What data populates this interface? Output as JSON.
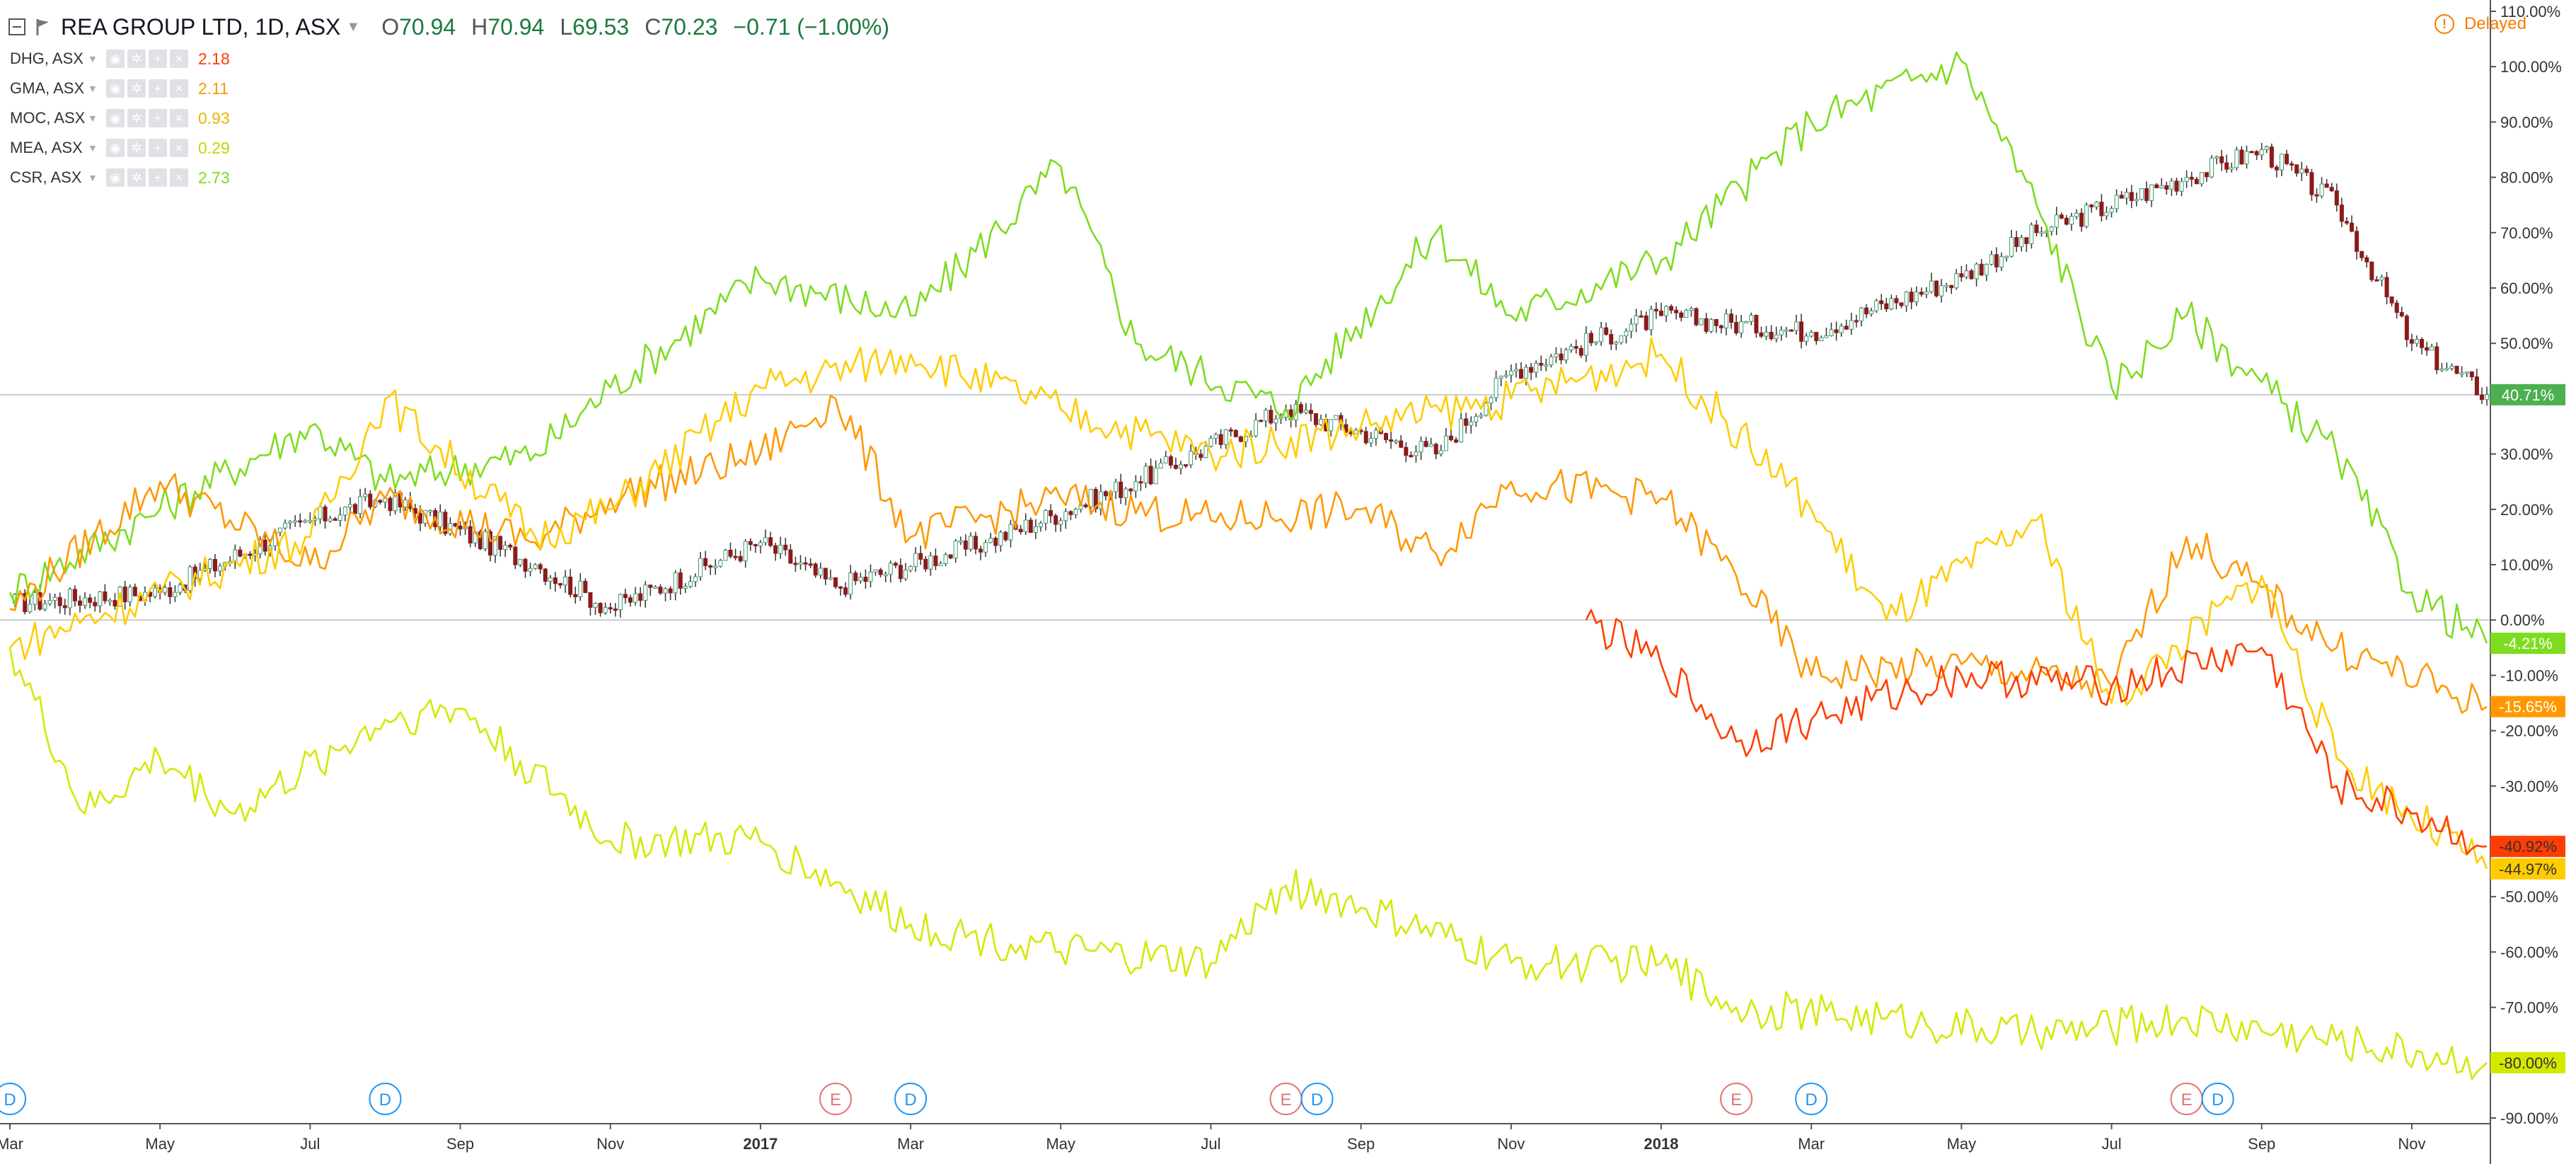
{
  "header": {
    "symbol": "REA GROUP LTD, 1D, ASX",
    "open_label": "O",
    "open": "70.94",
    "high_label": "H",
    "high": "70.94",
    "low_label": "L",
    "low": "69.53",
    "close_label": "C",
    "close": "70.23",
    "change": "−0.71 (−1.00%)"
  },
  "status": {
    "delayed": "Delayed"
  },
  "comparisons": [
    {
      "symbol": "DHG, ASX",
      "value": "2.18",
      "color": "#ff3d00"
    },
    {
      "symbol": "GMA, ASX",
      "value": "2.11",
      "color": "#ff9800"
    },
    {
      "symbol": "MOC, ASX",
      "value": "0.93",
      "color": "#ffcc00"
    },
    {
      "symbol": "MEA, ASX",
      "value": "0.29",
      "color": "#d4e800"
    },
    {
      "symbol": "CSR, ASX",
      "value": "2.73",
      "color": "#7ddc1f"
    }
  ],
  "icons": [
    "collapse-icon",
    "flag-icon",
    "eye-icon",
    "gear-icon",
    "plus-icon",
    "close-icon",
    "info-icon"
  ],
  "chart_data": {
    "type": "line",
    "percent_scale": true,
    "ylim": [
      -90,
      110
    ],
    "y_ticks": [
      "110.00%",
      "100.00%",
      "90.00%",
      "80.00%",
      "70.00%",
      "60.00%",
      "50.00%",
      "40.00%",
      "30.00%",
      "20.00%",
      "10.00%",
      "0.00%",
      "-10.00%",
      "-20.00%",
      "-30.00%",
      "-40.00%",
      "-50.00%",
      "-60.00%",
      "-70.00%",
      "-80.00%",
      "-90.00%"
    ],
    "x_ticks": [
      "Mar",
      "May",
      "Jul",
      "Sep",
      "Nov",
      "2017",
      "Mar",
      "May",
      "Jul",
      "Sep",
      "Nov",
      "2018",
      "Mar",
      "May",
      "Jul",
      "Sep",
      "Nov"
    ],
    "x_range": [
      "2016-03",
      "2018-12"
    ],
    "series": [
      {
        "name": "REA, ASX",
        "style": "candlestick",
        "color_up": "#3d9970",
        "color_down": "#8b1a1a",
        "last_label": "40.71%",
        "x": [
          "2016-03",
          "2016-05",
          "2016-07",
          "2016-08",
          "2016-10",
          "2016-11",
          "2017-01",
          "2017-02",
          "2017-04",
          "2017-06",
          "2017-08",
          "2017-10",
          "2017-11",
          "2018-01",
          "2018-03",
          "2018-05",
          "2018-06",
          "2018-08",
          "2018-09",
          "2018-10",
          "2018-11",
          "2018-12"
        ],
        "y": [
          3,
          5,
          18,
          22,
          10,
          2,
          14,
          6,
          14,
          25,
          38,
          30,
          45,
          55,
          52,
          62,
          70,
          80,
          85,
          75,
          50,
          40.71
        ]
      },
      {
        "name": "CSR, ASX",
        "color": "#7ddc1f",
        "last_label": "-4.21%",
        "x": [
          "2016-03",
          "2016-05",
          "2016-07",
          "2016-08",
          "2016-10",
          "2016-11",
          "2017-01",
          "2017-03",
          "2017-05",
          "2017-06",
          "2017-08",
          "2017-10",
          "2017-11",
          "2018-01",
          "2018-03",
          "2018-05",
          "2018-06",
          "2018-07",
          "2018-08",
          "2018-10",
          "2018-11",
          "2018-12"
        ],
        "y": [
          5,
          20,
          35,
          25,
          30,
          42,
          62,
          55,
          82,
          50,
          38,
          70,
          55,
          65,
          90,
          101,
          75,
          42,
          55,
          30,
          5,
          -4.21
        ]
      },
      {
        "name": "GMA, ASX",
        "color": "#ff9800",
        "last_label": "-15.65%",
        "x": [
          "2016-03",
          "2016-05",
          "2016-07",
          "2016-08",
          "2016-10",
          "2016-11",
          "2017-01",
          "2017-02",
          "2017-03",
          "2017-05",
          "2017-07",
          "2017-09",
          "2017-10",
          "2017-11",
          "2018-01",
          "2018-02",
          "2018-03",
          "2018-05",
          "2018-07",
          "2018-08",
          "2018-10",
          "2018-12"
        ],
        "y": [
          2,
          25,
          10,
          22,
          14,
          22,
          30,
          40,
          15,
          22,
          18,
          20,
          12,
          25,
          22,
          8,
          -10,
          -8,
          -12,
          15,
          -5,
          -15.65
        ]
      },
      {
        "name": "MOC, ASX",
        "color": "#ffcc00",
        "last_label": "-44.97%",
        "x": [
          "2016-03",
          "2016-05",
          "2016-07",
          "2016-08",
          "2016-10",
          "2016-11",
          "2017-01",
          "2017-03",
          "2017-05",
          "2017-07",
          "2017-09",
          "2017-11",
          "2018-01",
          "2018-03",
          "2018-04",
          "2018-06",
          "2018-07",
          "2018-09",
          "2018-10",
          "2018-12"
        ],
        "y": [
          -5,
          5,
          15,
          40,
          15,
          20,
          42,
          48,
          38,
          30,
          35,
          40,
          48,
          20,
          0,
          18,
          -15,
          8,
          -25,
          -44.97
        ]
      },
      {
        "name": "DHG, ASX",
        "color": "#ff3d00",
        "last_label": "-40.92%",
        "x": [
          "2017-12",
          "2018-01",
          "2018-02",
          "2018-03",
          "2018-05",
          "2018-07",
          "2018-09",
          "2018-10",
          "2018-11",
          "2018-12"
        ],
        "y": [
          0,
          -8,
          -22,
          -18,
          -10,
          -12,
          -5,
          -30,
          -35,
          -40.92
        ]
      },
      {
        "name": "MEA, ASX",
        "color": "#d4e800",
        "last_label": "-80.00%",
        "x": [
          "2016-03",
          "2016-04",
          "2016-05",
          "2016-06",
          "2016-08",
          "2016-09",
          "2016-11",
          "2017-01",
          "2017-03",
          "2017-05",
          "2017-07",
          "2017-08",
          "2017-09",
          "2017-11",
          "2018-01",
          "2018-02",
          "2018-04",
          "2018-06",
          "2018-08",
          "2018-10",
          "2018-12"
        ],
        "y": [
          -5,
          -35,
          -25,
          -35,
          -18,
          -16,
          -40,
          -40,
          -55,
          -60,
          -62,
          -48,
          -52,
          -62,
          -62,
          -70,
          -72,
          -75,
          -72,
          -76,
          -80
        ]
      }
    ],
    "events": [
      {
        "x": "2016-03",
        "label": "D"
      },
      {
        "x": "2016-08",
        "label": "D"
      },
      {
        "x": "2017-02",
        "label": "E"
      },
      {
        "x": "2017-03",
        "label": "D"
      },
      {
        "x": "2017-08",
        "label": "E"
      },
      {
        "x": "2017-08",
        "label": "D"
      },
      {
        "x": "2018-02",
        "label": "E"
      },
      {
        "x": "2018-03",
        "label": "D"
      },
      {
        "x": "2018-08",
        "label": "E"
      },
      {
        "x": "2018-08",
        "label": "D"
      }
    ],
    "reference_lines": [
      0,
      40.71
    ],
    "grid": false
  }
}
